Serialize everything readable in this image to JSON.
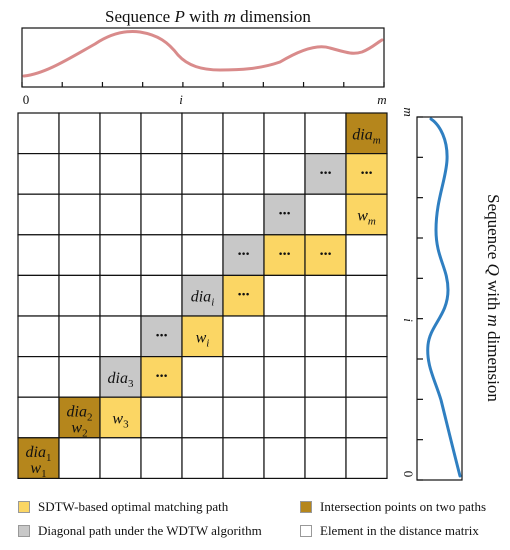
{
  "top_plot": {
    "title_prefix": "Sequence ",
    "title_var": "P",
    "title_suffix": " with ",
    "title_var2": "m",
    "title_end": " dimension",
    "tick_start": "0",
    "tick_mid": "i",
    "tick_end": "m",
    "curve_color": "#d98b8b"
  },
  "right_plot": {
    "title_prefix": "Sequence ",
    "title_var": "Q",
    "title_suffix": " with ",
    "title_var2": "m",
    "title_end": " dimension",
    "tick_start": "0",
    "tick_mid": "i",
    "tick_end": "m",
    "curve_color": "#2f7fc1"
  },
  "colors": {
    "sdtw": "#fbd664",
    "wdtw": "#c8c8c8",
    "intersection": "#b5861c",
    "element": "#ffffff"
  },
  "matrix": {
    "size": 9,
    "cells": [
      {
        "row": 8,
        "col": 0,
        "kind": "intersection",
        "lines": [
          [
            "dia",
            "1"
          ],
          [
            "w",
            "1"
          ]
        ]
      },
      {
        "row": 7,
        "col": 1,
        "kind": "intersection",
        "lines": [
          [
            "dia",
            "2"
          ],
          [
            "w",
            "2"
          ]
        ]
      },
      {
        "row": 7,
        "col": 2,
        "kind": "sdtw",
        "lines": [
          [
            "w",
            "3"
          ]
        ]
      },
      {
        "row": 6,
        "col": 2,
        "kind": "wdtw",
        "lines": [
          [
            "dia",
            "3"
          ]
        ]
      },
      {
        "row": 6,
        "col": 3,
        "kind": "sdtw",
        "lines": [
          [
            "···",
            ""
          ]
        ]
      },
      {
        "row": 5,
        "col": 3,
        "kind": "wdtw",
        "lines": [
          [
            "···",
            ""
          ]
        ]
      },
      {
        "row": 5,
        "col": 4,
        "kind": "sdtw",
        "lines": [
          [
            "w",
            "i"
          ]
        ]
      },
      {
        "row": 4,
        "col": 4,
        "kind": "wdtw",
        "lines": [
          [
            "dia",
            "i"
          ]
        ]
      },
      {
        "row": 4,
        "col": 5,
        "kind": "sdtw",
        "lines": [
          [
            "···",
            ""
          ]
        ]
      },
      {
        "row": 3,
        "col": 5,
        "kind": "wdtw",
        "lines": [
          [
            "···",
            ""
          ]
        ]
      },
      {
        "row": 3,
        "col": 6,
        "kind": "sdtw",
        "lines": [
          [
            "···",
            ""
          ]
        ]
      },
      {
        "row": 3,
        "col": 7,
        "kind": "sdtw",
        "lines": [
          [
            "···",
            ""
          ]
        ]
      },
      {
        "row": 2,
        "col": 6,
        "kind": "wdtw",
        "lines": [
          [
            "···",
            ""
          ]
        ]
      },
      {
        "row": 2,
        "col": 8,
        "kind": "sdtw",
        "lines": [
          [
            "w",
            "m"
          ]
        ]
      },
      {
        "row": 1,
        "col": 7,
        "kind": "wdtw",
        "lines": [
          [
            "···",
            ""
          ]
        ]
      },
      {
        "row": 1,
        "col": 8,
        "kind": "sdtw",
        "lines": [
          [
            "···",
            ""
          ]
        ]
      },
      {
        "row": 0,
        "col": 8,
        "kind": "intersection",
        "lines": [
          [
            "dia",
            "m"
          ]
        ]
      }
    ]
  },
  "legend": {
    "sdtw_label": "SDTW-based optimal matching path",
    "intersection_label": "Intersection points on two paths",
    "wdtw_label": "Diagonal path under the WDTW algorithm",
    "element_label": "Element in the distance matrix"
  }
}
